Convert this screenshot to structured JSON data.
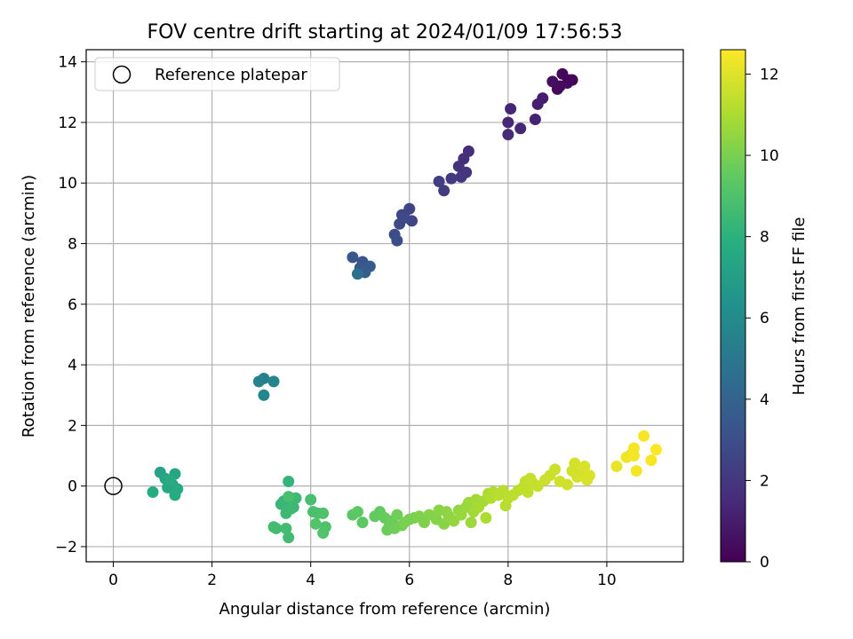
{
  "chart_data": {
    "type": "scatter",
    "title": "FOV centre drift starting at 2024/01/09 17:56:53",
    "xlabel": "Angular distance from reference (arcmin)",
    "ylabel": "Rotation from reference (arcmin)",
    "xlim": [
      -0.55,
      11.55
    ],
    "ylim": [
      -2.5,
      14.4
    ],
    "xticks": [
      0,
      2,
      4,
      6,
      8,
      10
    ],
    "yticks": [
      -2,
      0,
      2,
      4,
      6,
      8,
      10,
      12,
      14
    ],
    "grid": true,
    "legend": {
      "placement": "top-left",
      "entries": [
        "Reference platepar"
      ]
    },
    "reference_point": {
      "x": 0,
      "y": 0,
      "label": "Reference platepar"
    },
    "colorbar": {
      "label": "Hours from first FF file",
      "colormap": "viridis",
      "range": [
        0,
        12.6
      ],
      "ticks": [
        0,
        2,
        4,
        6,
        8,
        10,
        12
      ]
    },
    "series": [
      {
        "marker": "filled circle",
        "color_by": "hours",
        "x": [
          9.3,
          9.1,
          9.0,
          9.2,
          8.9,
          9.05,
          9.25,
          8.7,
          8.6,
          8.55,
          8.05,
          8.0,
          8.25,
          8.0,
          7.2,
          7.1,
          7.0,
          7.15,
          7.05,
          6.85,
          6.7,
          6.6,
          6.0,
          6.05,
          5.85,
          5.8,
          5.9,
          5.7,
          5.75,
          5.05,
          4.85,
          5.0,
          5.2,
          5.1,
          4.95,
          3.05,
          2.95,
          3.25
        ],
        "y": [
          13.4,
          13.6,
          13.1,
          13.3,
          13.35,
          13.2,
          13.4,
          12.8,
          12.6,
          12.1,
          12.45,
          12.0,
          11.8,
          11.6,
          11.05,
          10.8,
          10.55,
          10.35,
          10.2,
          10.15,
          9.75,
          10.05,
          9.15,
          8.75,
          8.95,
          8.65,
          8.85,
          8.3,
          8.1,
          7.4,
          7.55,
          7.2,
          7.25,
          7.05,
          7.0,
          3.55,
          3.45,
          3.45
        ],
        "hours": [
          0.1,
          0.2,
          0.3,
          0.4,
          0.5,
          0.4,
          0.2,
          1.0,
          1.1,
          1.2,
          1.3,
          1.4,
          1.4,
          1.5,
          1.6,
          1.7,
          1.8,
          1.9,
          2.0,
          2.1,
          2.2,
          2.3,
          2.5,
          2.6,
          2.7,
          2.8,
          2.8,
          2.9,
          3.0,
          3.3,
          3.4,
          3.5,
          3.6,
          3.7,
          4.6,
          5.4,
          5.6,
          5.7
        ]
      },
      {
        "marker": "filled circle",
        "color_by": "hours",
        "x": [
          3.05,
          0.95,
          1.05,
          1.2,
          1.25,
          1.1,
          1.15,
          1.3,
          0.8,
          1.25,
          3.55,
          3.6,
          3.45,
          3.65,
          3.4,
          3.5,
          3.6,
          3.7,
          3.55,
          3.3,
          3.25,
          3.5,
          3.55,
          4.0,
          4.05,
          4.15,
          4.25,
          4.3,
          4.25,
          4.1,
          4.85,
          4.95,
          5.05,
          5.3,
          5.4,
          5.5,
          5.6,
          5.55,
          5.65,
          5.75,
          5.7,
          5.85,
          6.0,
          5.9,
          6.1,
          6.2,
          6.3,
          6.4,
          6.55,
          6.6,
          6.7,
          6.75,
          6.8,
          6.9,
          7.0,
          7.05,
          7.15,
          7.2,
          7.25,
          7.3,
          7.35,
          7.4,
          7.5,
          7.55,
          7.6,
          7.65,
          7.7,
          7.8,
          7.9,
          7.95,
          8.0,
          8.1,
          8.2,
          8.3,
          8.35,
          8.4,
          8.45,
          8.5,
          8.6,
          8.75,
          8.85,
          8.95,
          9.05,
          9.2,
          9.3,
          9.35,
          9.4,
          9.5,
          9.55,
          9.65,
          9.6,
          10.2,
          10.4,
          10.5,
          10.55,
          10.6,
          10.75,
          10.9,
          11.0,
          10.55
        ],
        "y": [
          3.0,
          0.45,
          0.25,
          0.05,
          0.4,
          -0.05,
          0.2,
          -0.1,
          -0.2,
          -0.3,
          0.15,
          -0.4,
          -0.5,
          -0.7,
          -0.6,
          -0.9,
          -0.75,
          -0.4,
          -1.7,
          -1.4,
          -1.35,
          -1.4,
          -0.35,
          -0.45,
          -0.85,
          -0.9,
          -0.9,
          -1.35,
          -1.55,
          -1.25,
          -0.95,
          -0.85,
          -1.2,
          -1.0,
          -0.85,
          -1.05,
          -1.3,
          -1.45,
          -1.15,
          -0.95,
          -1.4,
          -1.3,
          -1.1,
          -1.2,
          -1.05,
          -1.0,
          -1.2,
          -0.95,
          -1.1,
          -0.8,
          -1.25,
          -0.85,
          -1.0,
          -1.15,
          -0.8,
          -0.95,
          -0.7,
          -0.55,
          -1.2,
          -0.85,
          -0.45,
          -0.7,
          -0.5,
          -1.05,
          -0.25,
          -0.4,
          -0.2,
          -0.3,
          -0.15,
          -0.65,
          -0.4,
          -0.3,
          -0.15,
          -0.05,
          0.15,
          -0.2,
          0.25,
          0.1,
          0.0,
          0.2,
          0.35,
          0.55,
          0.15,
          0.05,
          0.5,
          0.75,
          0.3,
          0.45,
          0.65,
          0.35,
          0.2,
          0.65,
          0.95,
          1.05,
          1.25,
          0.5,
          1.65,
          0.85,
          1.2,
          1.0
        ],
        "hours": [
          5.8,
          7.3,
          7.4,
          7.4,
          7.5,
          7.5,
          7.6,
          7.6,
          7.7,
          7.7,
          8.2,
          8.3,
          8.3,
          8.4,
          8.4,
          8.5,
          8.5,
          8.5,
          8.6,
          8.6,
          8.7,
          8.7,
          8.8,
          8.8,
          8.9,
          8.9,
          9.0,
          9.0,
          9.1,
          9.1,
          9.3,
          9.4,
          9.4,
          9.5,
          9.5,
          9.6,
          9.6,
          9.7,
          9.7,
          9.8,
          9.8,
          9.9,
          9.9,
          10.0,
          10.0,
          10.1,
          10.1,
          10.2,
          10.2,
          10.3,
          10.3,
          10.4,
          10.4,
          10.5,
          10.5,
          10.6,
          10.6,
          10.7,
          10.7,
          10.8,
          10.8,
          10.9,
          10.9,
          11.0,
          11.0,
          11.1,
          11.1,
          11.2,
          11.2,
          11.2,
          11.3,
          11.3,
          11.3,
          11.4,
          11.4,
          11.4,
          11.5,
          11.5,
          11.5,
          11.6,
          11.6,
          11.6,
          11.7,
          11.7,
          11.7,
          11.8,
          11.8,
          11.8,
          11.9,
          11.9,
          11.9,
          12.2,
          12.3,
          12.3,
          12.4,
          12.4,
          12.5,
          12.5,
          12.6,
          12.4
        ]
      }
    ]
  }
}
